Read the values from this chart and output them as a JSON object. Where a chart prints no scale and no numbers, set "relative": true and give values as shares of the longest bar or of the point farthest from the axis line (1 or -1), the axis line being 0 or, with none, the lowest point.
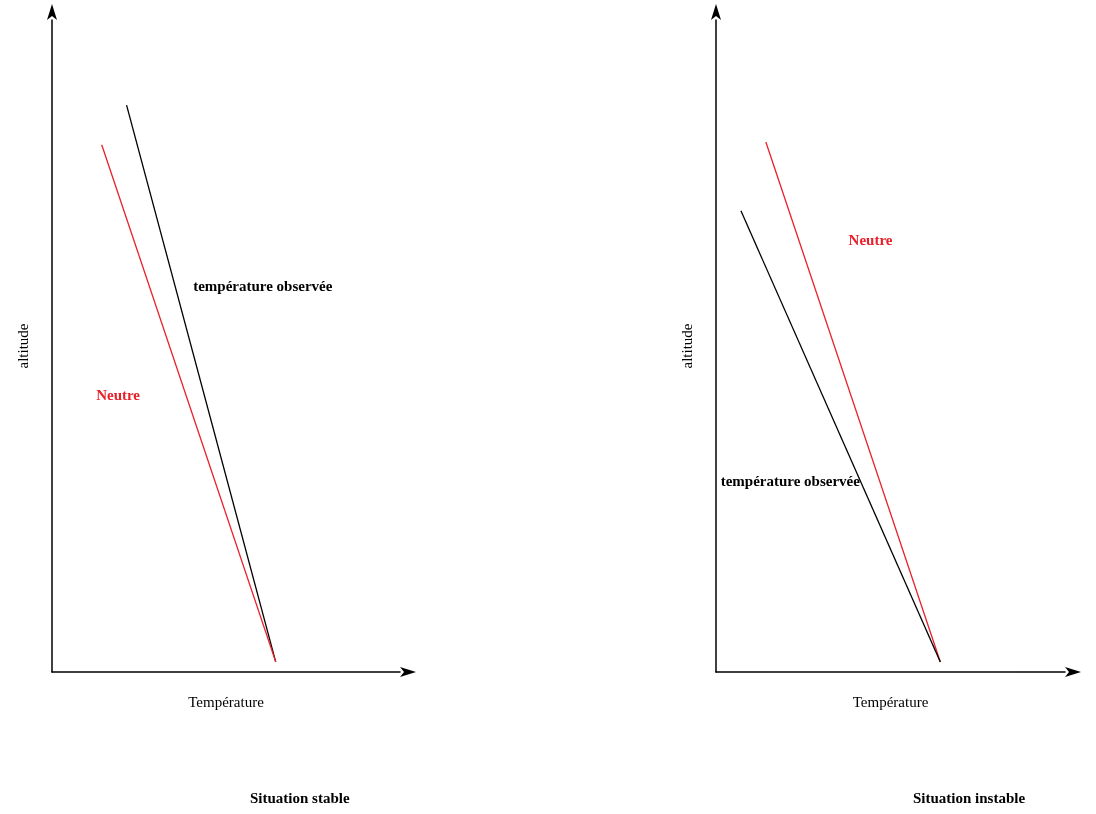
{
  "chart_data": [
    {
      "type": "line",
      "relative": true,
      "xlabel": "Température",
      "ylabel": "altitude",
      "grid": false,
      "legend": false,
      "marker": "none",
      "line_style": "solid",
      "annotations": [
        "Situation stable"
      ],
      "categories": [
        null,
        null,
        null,
        null,
        null,
        null,
        null,
        null,
        null,
        null,
        null,
        null,
        null,
        null,
        null
      ],
      "series": [
        {
          "name": "température observée",
          "color": "#000000",
          "values": [
            null,
            null,
            null,
            1,
            null,
            null,
            null,
            null,
            null,
            0.018,
            null,
            null,
            null,
            null,
            null
          ]
        },
        {
          "name": "Neutre",
          "color": "#e8202a",
          "values": [
            null,
            null,
            0.93,
            null,
            null,
            null,
            null,
            null,
            null,
            0.018,
            null,
            null,
            null,
            null,
            null
          ]
        }
      ]
    },
    {
      "type": "line",
      "relative": true,
      "xlabel": "Température",
      "ylabel": "altitude",
      "grid": false,
      "legend": false,
      "marker": "none",
      "line_style": "solid",
      "annotations": [
        "Situation instable"
      ],
      "categories": [
        null,
        null,
        null,
        null,
        null,
        null,
        null,
        null,
        null,
        null,
        null,
        null,
        null,
        null,
        null
      ],
      "series": [
        {
          "name": "Neutre",
          "color": "#e8202a",
          "values": [
            null,
            null,
            1,
            null,
            null,
            null,
            null,
            null,
            null,
            0.019,
            null,
            null,
            null,
            null,
            null
          ]
        },
        {
          "name": "température observée",
          "color": "#000000",
          "values": [
            null,
            0.87,
            null,
            null,
            null,
            null,
            null,
            null,
            null,
            0.019,
            null,
            null,
            null,
            null,
            null
          ]
        }
      ]
    }
  ]
}
